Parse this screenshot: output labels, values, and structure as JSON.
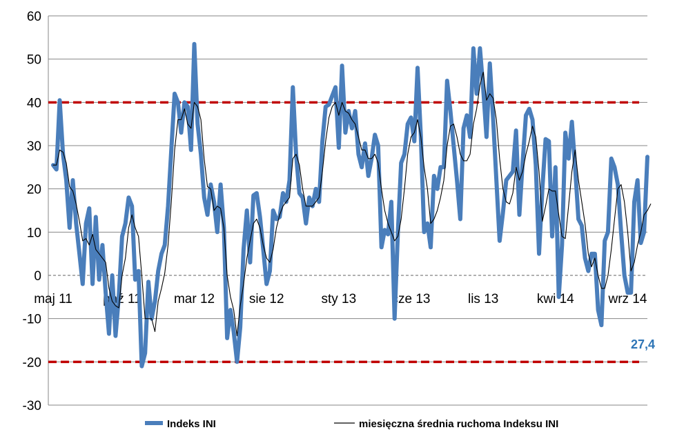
{
  "chart_data": {
    "type": "line",
    "title": "",
    "xlabel": "",
    "ylabel": "",
    "ylim": [
      -30,
      60
    ],
    "yticks": [
      60,
      50,
      40,
      30,
      20,
      10,
      0,
      -10,
      -20,
      -30
    ],
    "xtick_labels": [
      "maj 11",
      "paź 11",
      "mar 12",
      "sie 12",
      "sty 13",
      "cze 13",
      "lis 13",
      "kwi 14",
      "wrz 14"
    ],
    "xtick_index": [
      0,
      21,
      43,
      65,
      87,
      109,
      131,
      153,
      175
    ],
    "grid": "horizontal",
    "legend": "bottom",
    "reference_lines": [
      {
        "value": 40,
        "style": "dashed",
        "color": "#c00000"
      },
      {
        "value": -20,
        "style": "dashed",
        "color": "#c00000"
      },
      {
        "value": 0,
        "style": "dashed",
        "color": "#808080"
      }
    ],
    "series": [
      {
        "name": "Indeks INI",
        "color": "#4a7ebb",
        "values": [
          25.5,
          24.5,
          40.5,
          28.0,
          22.0,
          11.0,
          22.0,
          12.0,
          5.0,
          -2.0,
          12.0,
          15.5,
          -2.0,
          13.5,
          -1.0,
          7.0,
          -4.0,
          -13.5,
          0.0,
          -14.0,
          -5.0,
          9.0,
          12.0,
          18.0,
          16.0,
          -1.0,
          1.0,
          -21.0,
          -18.0,
          -1.5,
          -10.0,
          -6.0,
          1.0,
          5.0,
          7.0,
          16.0,
          29.0,
          42.0,
          40.0,
          33.0,
          40.0,
          39.0,
          29.0,
          53.5,
          35.0,
          28.0,
          18.0,
          14.0,
          21.0,
          17.0,
          10.0,
          21.0,
          11.0,
          -14.5,
          -8.0,
          -13.0,
          -20.0,
          -12.0,
          6.0,
          15.0,
          3.0,
          18.5,
          19.0,
          13.5,
          6.0,
          -2.0,
          1.0,
          15.0,
          13.0,
          13.5,
          19.0,
          17.0,
          22.0,
          43.5,
          28.0,
          19.0,
          18.0,
          12.0,
          18.0,
          16.0,
          20.0,
          17.0,
          31.0,
          39.0,
          39.5,
          41.5,
          43.5,
          29.5,
          48.5,
          33.0,
          38.0,
          34.0,
          38.0,
          28.0,
          25.0,
          30.5,
          23.0,
          27.0,
          32.5,
          30.0,
          6.5,
          10.5,
          9.5,
          17.0,
          -10.0,
          10.0,
          26.0,
          28.0,
          35.0,
          36.5,
          31.0,
          48.0,
          32.0,
          10.0,
          12.0,
          6.5,
          23.0,
          20.0,
          25.0,
          25.0,
          45.0,
          38.0,
          30.0,
          22.0,
          13.0,
          34.0,
          37.0,
          32.0,
          52.5,
          42.0,
          52.5,
          43.0,
          32.0,
          49.0,
          36.5,
          22.0,
          8.0,
          14.5,
          22.0,
          23.0,
          24.0,
          33.5,
          14.0,
          26.0,
          37.0,
          38.5,
          36.0,
          25.5,
          5.0,
          20.0,
          31.5,
          31.0,
          9.0,
          25.0,
          -5.0,
          7.0,
          33.0,
          27.0,
          35.5,
          25.0,
          13.0,
          11.5,
          4.0,
          1.0,
          5.0,
          5.0,
          -8.0,
          -11.5,
          8.0,
          10.0,
          27.0,
          25.0,
          21.0,
          10.0,
          0.0,
          -4.0,
          -4.0,
          17.0,
          22.0,
          7.5,
          10.0,
          27.4
        ]
      },
      {
        "name": "miesięczna średnia ruchoma Indeksu INI",
        "color": "#000000",
        "values": [
          25.5,
          25.5,
          29.0,
          28.5,
          26.0,
          20.5,
          19.5,
          16.5,
          12.5,
          8.0,
          8.5,
          7.0,
          9.5,
          6.0,
          5.0,
          4.0,
          3.0,
          -3.0,
          -6.0,
          -7.0,
          -7.5,
          0.0,
          4.0,
          11.0,
          14.0,
          11.0,
          9.0,
          0.0,
          -10.0,
          -10.0,
          -10.0,
          -13.0,
          -6.0,
          -3.0,
          0.5,
          7.0,
          17.0,
          29.0,
          36.0,
          36.0,
          38.5,
          35.0,
          34.0,
          40.0,
          39.0,
          36.0,
          27.0,
          20.5,
          20.0,
          15.0,
          16.0,
          15.5,
          11.0,
          0.0,
          -5.0,
          -8.0,
          -14.0,
          -7.0,
          -2.0,
          4.0,
          8.0,
          12.0,
          13.0,
          11.0,
          7.0,
          4.0,
          3.0,
          6.0,
          11.0,
          14.0,
          16.0,
          17.0,
          18.0,
          27.0,
          28.0,
          25.5,
          20.0,
          16.0,
          16.0,
          16.0,
          17.0,
          18.0,
          24.0,
          31.0,
          36.5,
          39.0,
          40.0,
          37.0,
          40.0,
          38.0,
          37.5,
          36.0,
          35.0,
          32.0,
          29.0,
          29.0,
          27.0,
          27.0,
          28.0,
          26.0,
          20.0,
          15.0,
          12.0,
          10.0,
          8.0,
          9.0,
          13.0,
          20.0,
          28.0,
          32.0,
          33.0,
          36.0,
          32.0,
          25.0,
          20.0,
          12.0,
          13.0,
          15.0,
          18.0,
          22.0,
          30.0,
          34.5,
          35.0,
          32.0,
          28.0,
          26.5,
          26.5,
          28.0,
          35.0,
          38.5,
          44.0,
          47.0,
          40.5,
          42.0,
          41.0,
          36.0,
          27.0,
          20.0,
          17.0,
          16.5,
          19.0,
          25.0,
          22.0,
          24.0,
          28.0,
          31.0,
          34.5,
          32.0,
          24.0,
          12.5,
          16.0,
          20.0,
          19.5,
          19.5,
          14.0,
          9.0,
          8.5,
          16.0,
          24.0,
          29.0,
          22.0,
          17.0,
          12.0,
          5.0,
          2.0,
          4.0,
          0.0,
          -3.0,
          -3.0,
          0.0,
          6.0,
          13.0,
          20.0,
          21.0,
          17.0,
          10.0,
          1.0,
          3.0,
          7.0,
          10.0,
          14.0,
          15.0,
          16.5
        ]
      }
    ],
    "last_value_label": "27,4"
  }
}
